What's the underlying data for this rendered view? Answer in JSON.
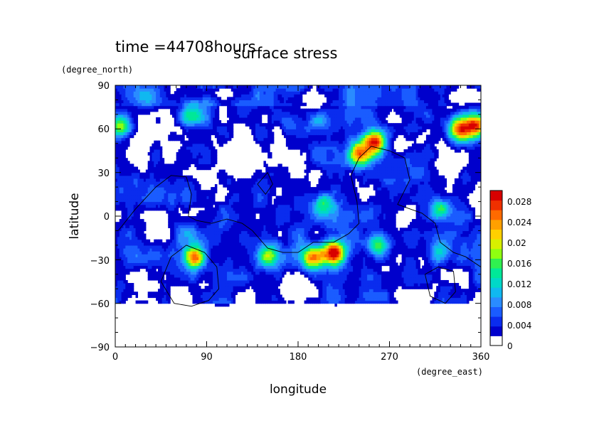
{
  "chart_data": {
    "type": "heatmap",
    "title": "surface stress",
    "time_label": "time =44708hours",
    "xlabel": "longitude",
    "ylabel": "latitude",
    "xunit": "(degree_east)",
    "yunit": "(degree_north)",
    "xlim": [
      0,
      360
    ],
    "ylim": [
      -90,
      90
    ],
    "xticks": [
      "0",
      "90",
      "180",
      "270",
      "360"
    ],
    "yticks": [
      "90",
      "60",
      "30",
      "0",
      "−30",
      "−60",
      "−90"
    ],
    "colorbar": {
      "range": [
        0,
        0.03
      ],
      "labels": [
        "0",
        "0.004",
        "0.008",
        "0.012",
        "0.016",
        "0.02",
        "0.024",
        "0.028"
      ],
      "colors": [
        "#ffffff",
        "#0000cc",
        "#0a2cee",
        "#1a5cff",
        "#2a8cff",
        "#10b8f0",
        "#00d8c8",
        "#00e898",
        "#30f050",
        "#90ff10",
        "#d8f000",
        "#ffd000",
        "#ffa000",
        "#ff6a00",
        "#f03000",
        "#d80000"
      ]
    },
    "features": [
      {
        "lon": 30,
        "lat": 82,
        "value": 0.008
      },
      {
        "lon": 75,
        "lat": 70,
        "value": 0.017
      },
      {
        "lon": 5,
        "lat": 63,
        "value": 0.02
      },
      {
        "lon": 170,
        "lat": 65,
        "value": 0.008
      },
      {
        "lon": 200,
        "lat": 65,
        "value": 0.012
      },
      {
        "lon": 255,
        "lat": 52,
        "value": 0.03
      },
      {
        "lon": 240,
        "lat": 43,
        "value": 0.025
      },
      {
        "lon": 338,
        "lat": 60,
        "value": 0.024
      },
      {
        "lon": 355,
        "lat": 62,
        "value": 0.028
      },
      {
        "lon": 205,
        "lat": 8,
        "value": 0.016
      },
      {
        "lon": 320,
        "lat": 5,
        "value": 0.018
      },
      {
        "lon": 320,
        "lat": -25,
        "value": 0.014
      },
      {
        "lon": 78,
        "lat": -28,
        "value": 0.03
      },
      {
        "lon": 70,
        "lat": -12,
        "value": 0.014
      },
      {
        "lon": 195,
        "lat": -28,
        "value": 0.027
      },
      {
        "lon": 215,
        "lat": -25,
        "value": 0.03
      },
      {
        "lon": 150,
        "lat": -27,
        "value": 0.02
      },
      {
        "lon": 260,
        "lat": -20,
        "value": 0.018
      },
      {
        "lon": 120,
        "lat": 15,
        "value": 0.006
      },
      {
        "lon": 40,
        "lat": -8,
        "value": 0.006
      },
      {
        "lon": 150,
        "lat": -55,
        "value": 0.006
      },
      {
        "lon": 300,
        "lat": 30,
        "value": 0.007
      }
    ]
  }
}
